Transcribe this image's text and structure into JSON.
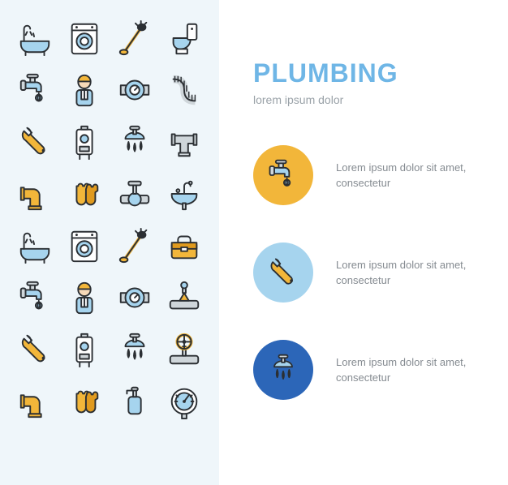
{
  "colors": {
    "panel_bg": "#eff6fa",
    "title": "#6fb6e6",
    "subtitle": "#9aa2a8",
    "body_text": "#858b91",
    "stroke": "#2b2f33",
    "blue_fill": "#a6d4ee",
    "blue_dark": "#2c66b8",
    "yellow": "#f2b63a",
    "yellow_dark": "#e09a1e",
    "white": "#ffffff",
    "grey": "#cfd6da"
  },
  "title": "PLUMBING",
  "subtitle": "lorem ipsum dolor",
  "features": [
    {
      "badge_bg": "#f2b63a",
      "icon": "faucet",
      "text": "Lorem ipsum dolor sit amet, consectetur"
    },
    {
      "badge_bg": "#a6d4ee",
      "icon": "wrench",
      "text": "Lorem ipsum dolor sit amet, consectetur"
    },
    {
      "badge_bg": "#2c66b8",
      "icon": "shower",
      "text": "Lorem ipsum dolor sit amet, consectetur"
    }
  ],
  "grid_icons": [
    "bathtub",
    "washer",
    "brush",
    "toilet",
    "faucet",
    "plumber",
    "meter",
    "flexpipe",
    "wrench",
    "heater",
    "shower",
    "tee",
    "elbow",
    "gloves",
    "valve",
    "sink",
    "bathtub",
    "washer",
    "brush",
    "toolbox",
    "faucet",
    "plumber",
    "meter",
    "stopvalve",
    "wrench",
    "heater",
    "shower",
    "wheelvalve",
    "elbow",
    "gloves",
    "soapvalve",
    "gauge"
  ],
  "icon_labels": {
    "bathtub": "bathtub-icon",
    "washer": "washing-machine-icon",
    "brush": "plunger-brush-icon",
    "toilet": "toilet-icon",
    "faucet": "faucet-icon",
    "plumber": "plumber-icon",
    "meter": "water-meter-icon",
    "flexpipe": "flex-pipe-icon",
    "wrench": "pipe-wrench-icon",
    "heater": "water-heater-icon",
    "shower": "shower-head-icon",
    "tee": "pipe-tee-icon",
    "elbow": "pipe-elbow-icon",
    "gloves": "gloves-icon",
    "valve": "valve-icon",
    "sink": "sink-icon",
    "toolbox": "toolbox-icon",
    "stopvalve": "stop-valve-icon",
    "wheelvalve": "wheel-valve-icon",
    "soapvalve": "soap-dispenser-icon",
    "gauge": "pressure-gauge-icon"
  }
}
